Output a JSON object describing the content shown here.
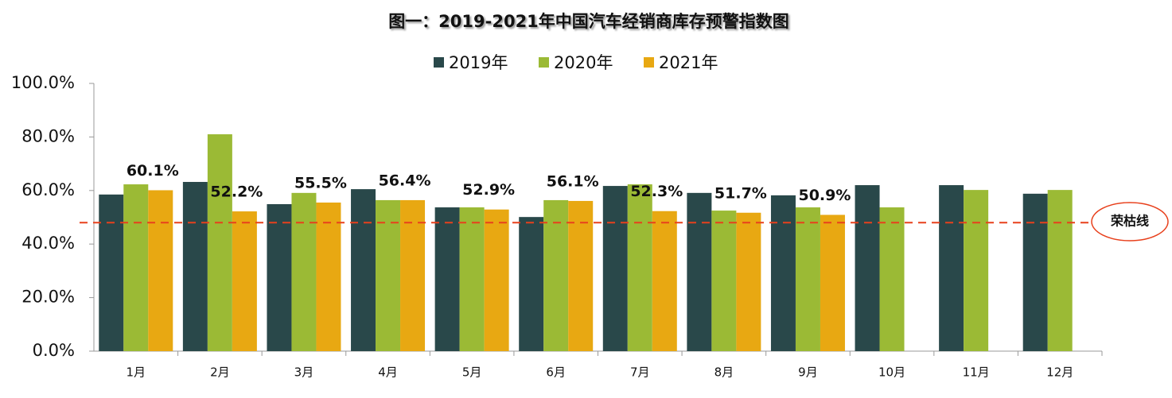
{
  "chart_data": {
    "type": "bar",
    "title": "图一：2019-2021年中国汽车经销商库存预警指数图",
    "categories": [
      "1月",
      "2月",
      "3月",
      "4月",
      "5月",
      "6月",
      "7月",
      "8月",
      "9月",
      "10月",
      "11月",
      "12月"
    ],
    "series": [
      {
        "name": "2019年",
        "color": "#29484a",
        "values": [
          58.5,
          63.2,
          54.9,
          60.5,
          53.7,
          50.1,
          61.7,
          59.1,
          58.2,
          62.0,
          62.0,
          58.8
        ]
      },
      {
        "name": "2020年",
        "color": "#9bba35",
        "values": [
          62.3,
          81.0,
          59.1,
          56.4,
          53.7,
          56.4,
          62.3,
          52.5,
          53.7,
          53.7,
          60.2,
          60.2
        ]
      },
      {
        "name": "2021年",
        "color": "#e8a812",
        "values": [
          60.1,
          52.2,
          55.5,
          56.4,
          52.9,
          56.1,
          52.3,
          51.7,
          50.9,
          null,
          null,
          null
        ],
        "value_labels": [
          "60.1%",
          "52.2%",
          "55.5%",
          "56.4%",
          "52.9%",
          "56.1%",
          "52.3%",
          "51.7%",
          "50.9%",
          null,
          null,
          null
        ]
      }
    ],
    "ylim": [
      0,
      100
    ],
    "yticks": [
      {
        "value": 0,
        "label": "0.0%"
      },
      {
        "value": 20,
        "label": "20.0%"
      },
      {
        "value": 40,
        "label": "40.0%"
      },
      {
        "value": 60,
        "label": "60.0%"
      },
      {
        "value": 80,
        "label": "80.0%"
      },
      {
        "value": 100,
        "label": "100.0%"
      }
    ],
    "threshold": 48,
    "threshold_label": "荣枯线",
    "threshold_color": "#e8401c"
  }
}
